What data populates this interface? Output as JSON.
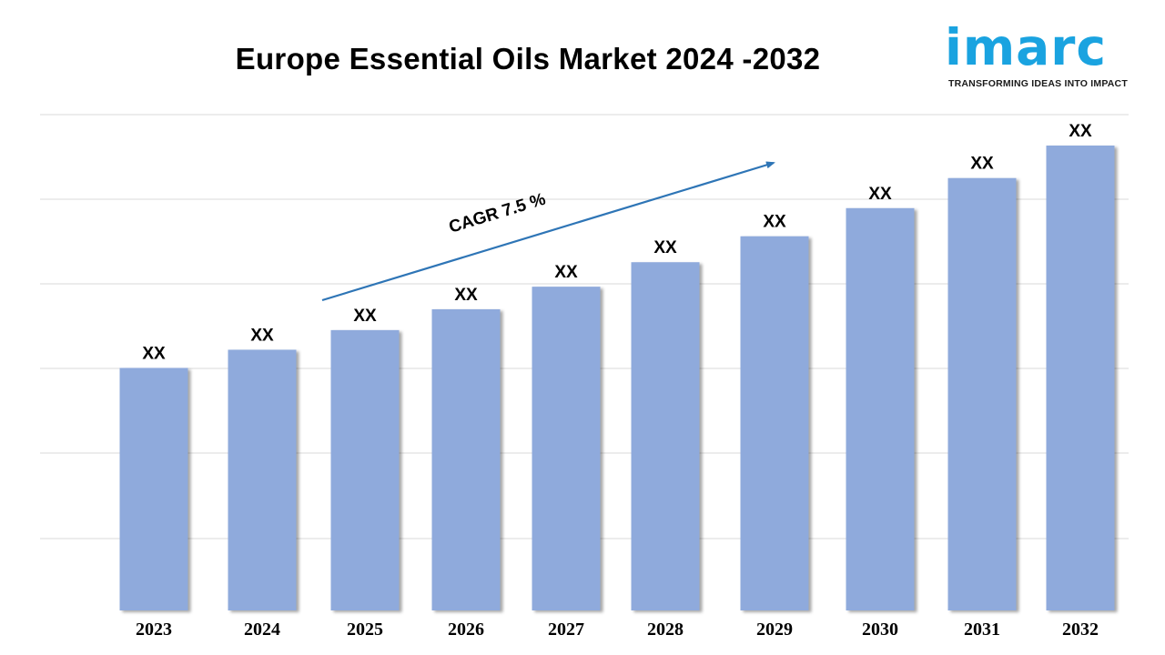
{
  "header": {
    "title": "Europe Essential Oils Market 2024 -2032"
  },
  "logo": {
    "wordmark": "imarc",
    "tagline": "TRANSFORMING IDEAS INTO IMPACT",
    "color": "#1aa3e0"
  },
  "chart_data": {
    "type": "bar",
    "categories": [
      "2023",
      "2024",
      "2025",
      "2026",
      "2027",
      "2028",
      "2029",
      "2030",
      "2031",
      "2032"
    ],
    "values": [
      1.0,
      1.075,
      1.156,
      1.242,
      1.335,
      1.436,
      1.543,
      1.659,
      1.783,
      1.917
    ],
    "data_labels": [
      "XX",
      "XX",
      "XX",
      "XX",
      "XX",
      "XX",
      "XX",
      "XX",
      "XX",
      "XX"
    ],
    "bar_color": "#8faadc",
    "gridlines": true,
    "annotation": {
      "text": "CAGR 7.5 %",
      "arrow_color": "#2e75b6"
    }
  }
}
